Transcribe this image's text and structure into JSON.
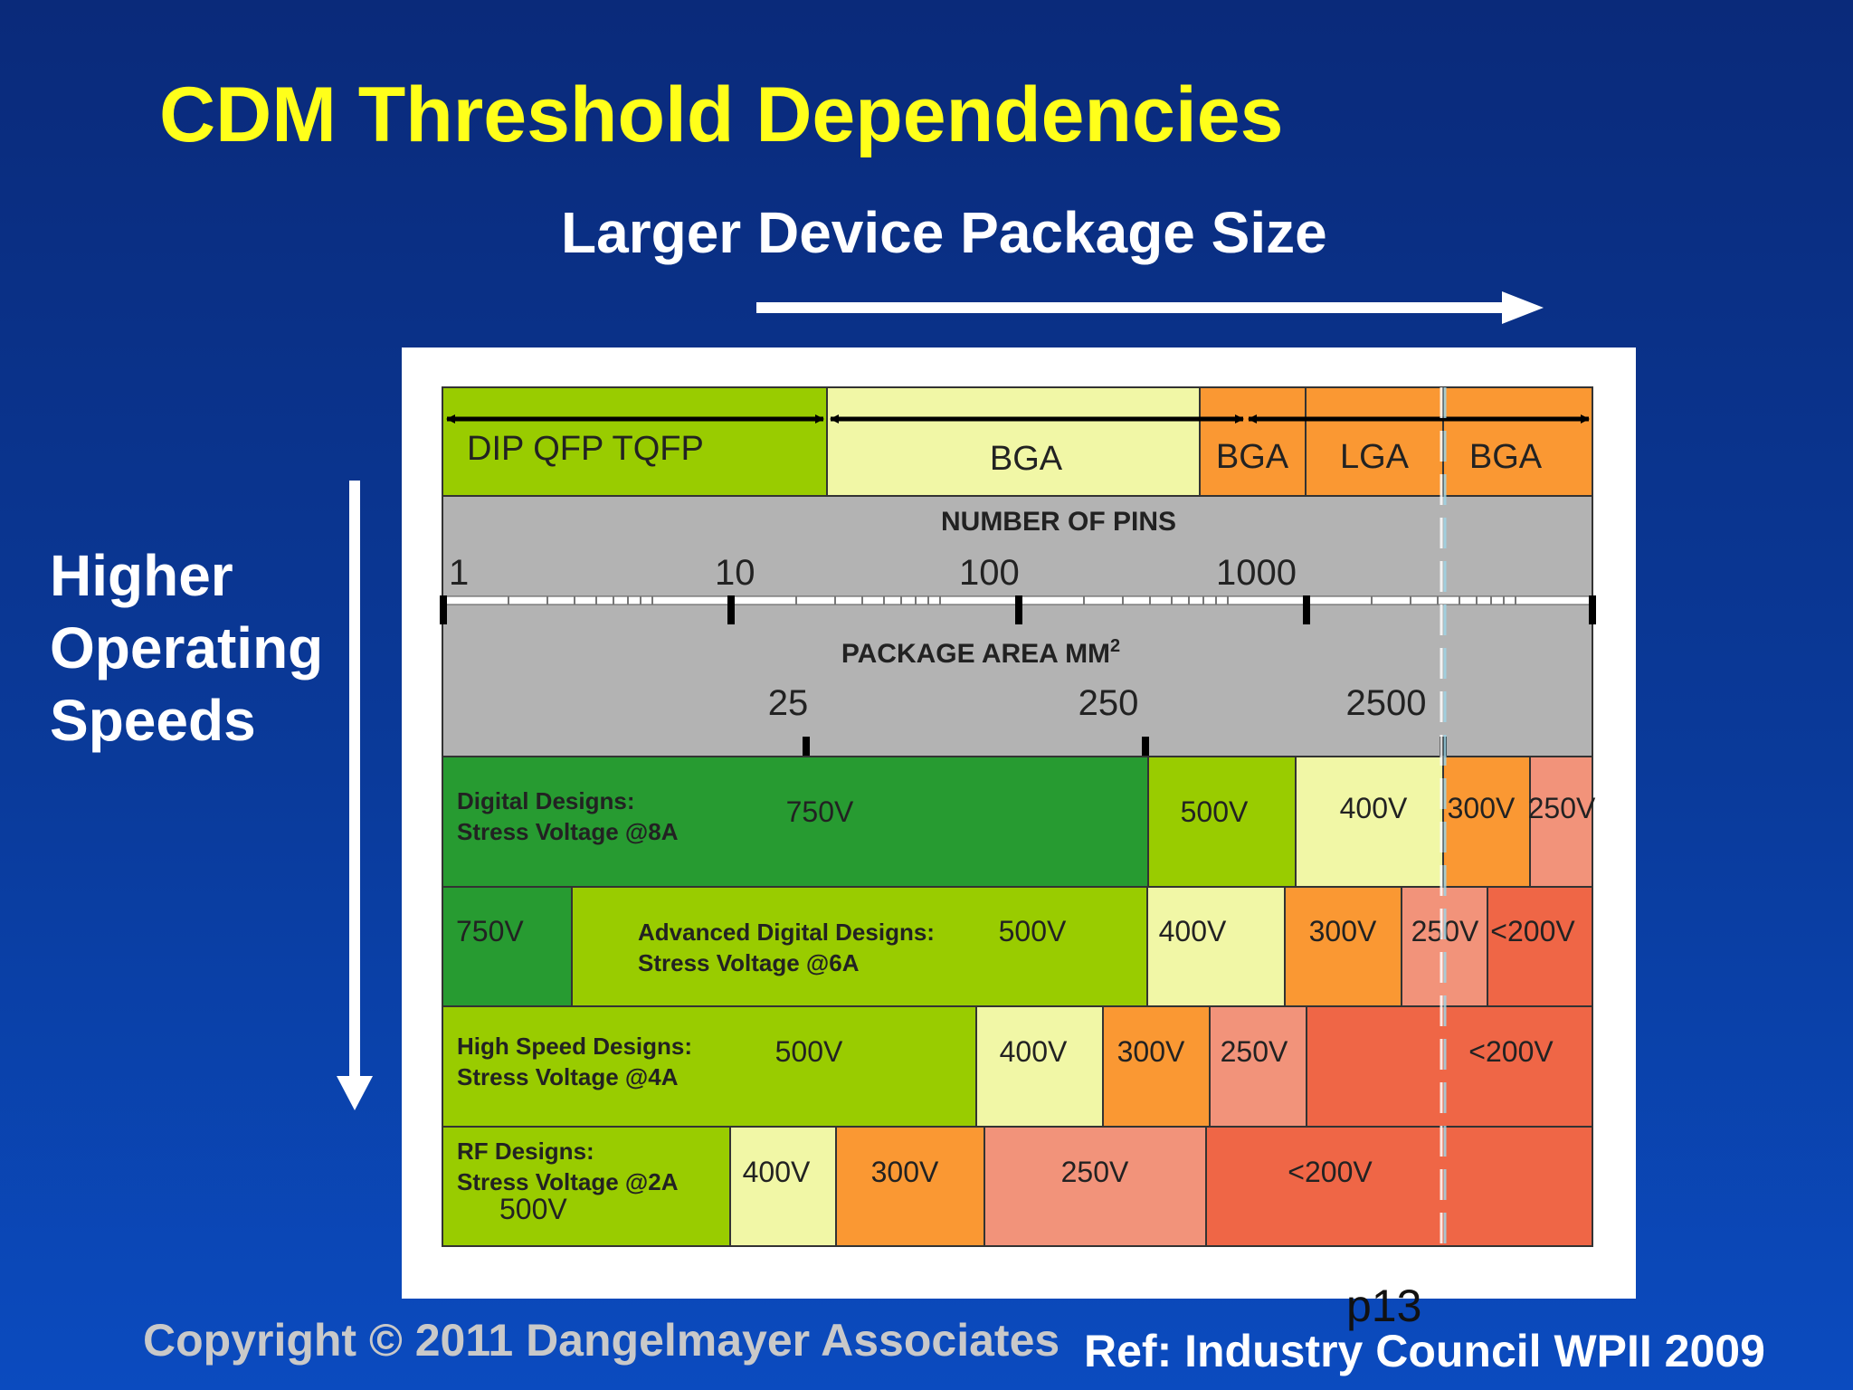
{
  "slide": {
    "title": "CDM Threshold Dependencies",
    "horizontal_label": "Larger Device Package Size",
    "vertical_label": [
      "Higher",
      "Operating",
      "Speeds"
    ],
    "copyright": "Copyright © 2011 Dangelmayer Associates",
    "reference": "Ref: Industry Council WPII 2009",
    "page_number": "p13"
  },
  "diagram": {
    "packages": [
      "DIP  QFP  TQFP",
      "BGA",
      "BGA",
      "LGA",
      "BGA"
    ],
    "pins_title": "NUMBER OF PINS",
    "pins_ticks": [
      "1",
      "10",
      "100",
      "1000"
    ],
    "area_title": "PACKAGE AREA MM",
    "area_superscript": "2",
    "area_ticks": [
      "25",
      "250",
      "2500"
    ],
    "rows": [
      {
        "name": "Digital Designs:",
        "stress": "Stress Voltage @8A",
        "cells": [
          "750V",
          "500V",
          "400V",
          "300V",
          "250V"
        ]
      },
      {
        "name": "Advanced Digital Designs:",
        "stress": "Stress Voltage @6A",
        "cells": [
          "750V",
          "500V",
          "400V",
          "300V",
          "250V",
          "<200V"
        ]
      },
      {
        "name": "High Speed Designs:",
        "stress": "Stress Voltage @4A",
        "cells": [
          "500V",
          "400V",
          "300V",
          "250V",
          "<200V"
        ]
      },
      {
        "name": "RF Designs:",
        "stress": "Stress Voltage @2A",
        "cells": [
          "500V",
          "400V",
          "300V",
          "250V",
          "<200V"
        ]
      }
    ]
  },
  "colors": {
    "dark_green": "#279b31",
    "lime_green": "#99cc00",
    "pale_yellow": "#f1f7a6",
    "orange": "#fa9833",
    "salmon": "#f2937a",
    "red_orange": "#ef6646",
    "gray": "#b3b3b3",
    "title_yellow": "#ffff1a"
  }
}
